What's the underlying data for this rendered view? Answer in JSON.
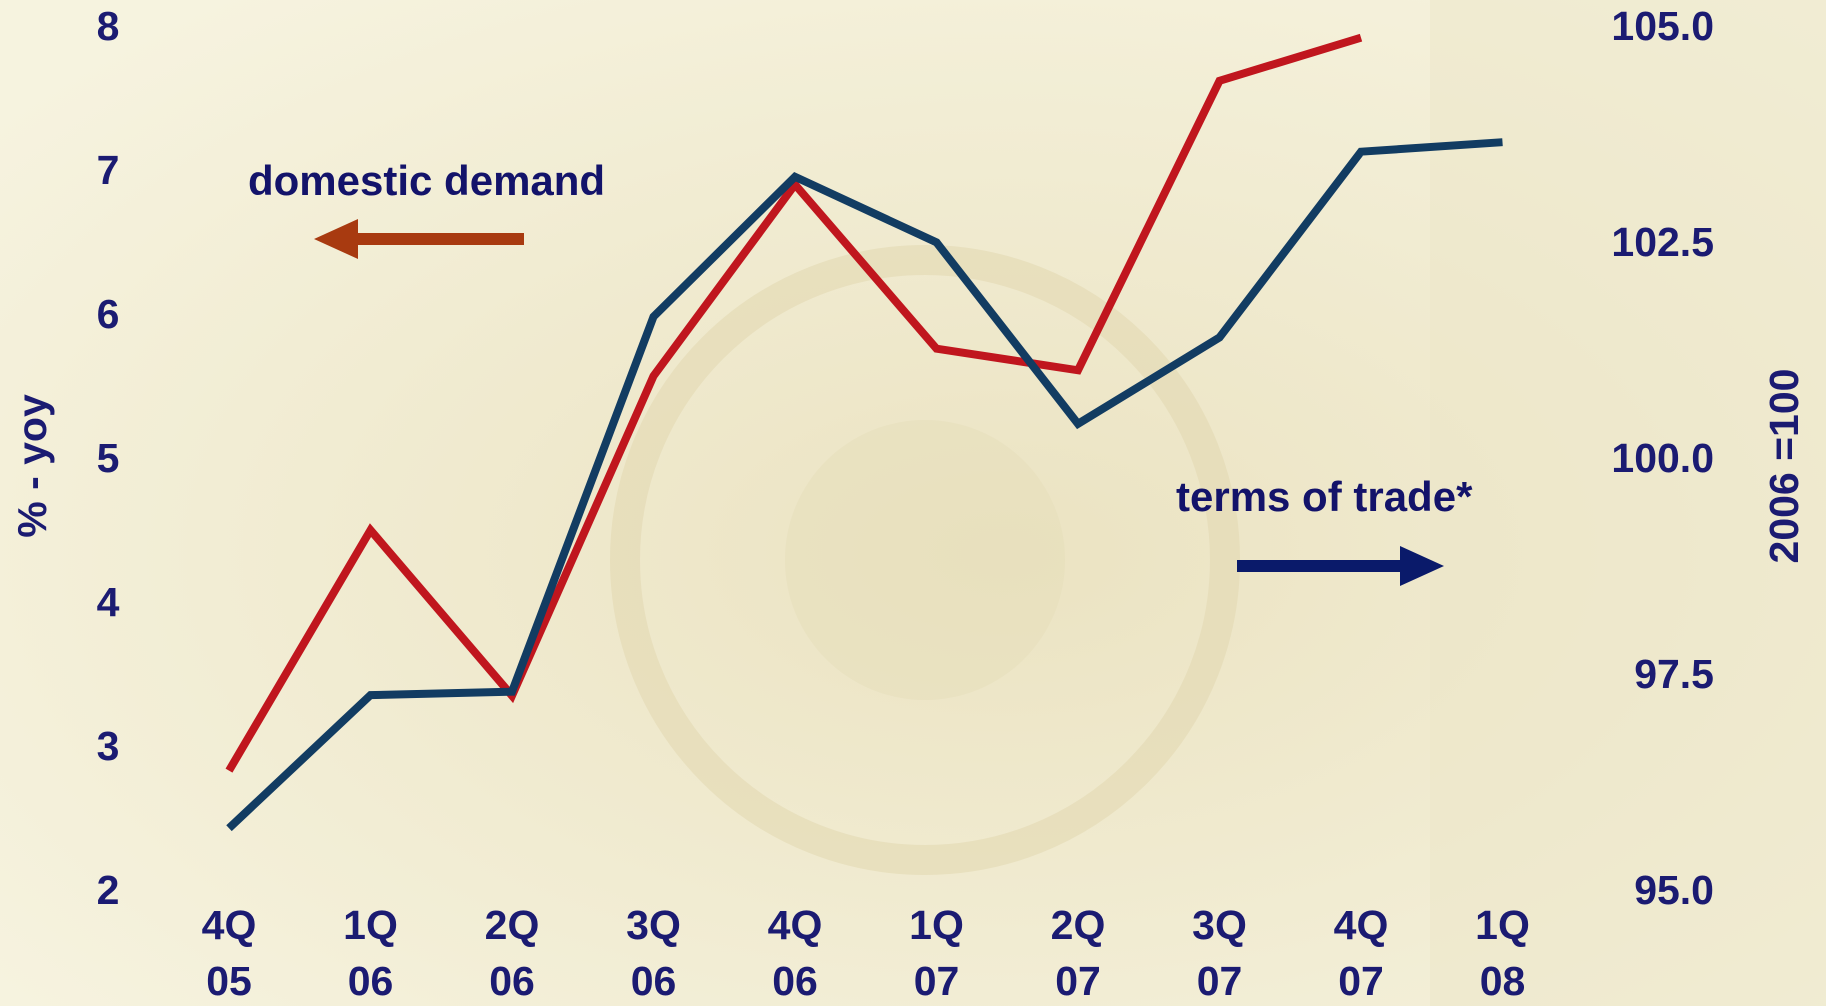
{
  "chart_data": {
    "type": "line",
    "categories": [
      [
        "4Q",
        "05"
      ],
      [
        "1Q",
        "06"
      ],
      [
        "2Q",
        "06"
      ],
      [
        "3Q",
        "06"
      ],
      [
        "4Q",
        "06"
      ],
      [
        "1Q",
        "07"
      ],
      [
        "2Q",
        "07"
      ],
      [
        "3Q",
        "07"
      ],
      [
        "4Q",
        "07"
      ],
      [
        "1Q",
        "08"
      ]
    ],
    "series": [
      {
        "name": "domestic demand",
        "color": "#c0161e",
        "values": [
          2.85,
          4.52,
          3.37,
          5.59,
          6.92,
          5.78,
          5.63,
          7.64,
          7.94,
          null
        ]
      },
      {
        "name": "terms of trade*",
        "color": "#123c62",
        "axis": "y2",
        "values": [
          95.75,
          97.29,
          97.33,
          101.67,
          103.29,
          102.53,
          100.43,
          101.43,
          103.58,
          103.69
        ]
      }
    ],
    "ylabel": "% - yoy",
    "y2label": "2006 =100",
    "ylim": [
      2,
      8
    ],
    "yticks": [
      2,
      3,
      4,
      5,
      6,
      7,
      8
    ],
    "y2lim": [
      95,
      105
    ],
    "y2ticks": [
      {
        "value": 95,
        "label": "95.0"
      },
      {
        "value": 97.5,
        "label": "97.5"
      },
      {
        "value": 100,
        "label": "100.0"
      },
      {
        "value": 102.5,
        "label": "102.5"
      },
      {
        "value": 105,
        "label": "105.0"
      }
    ],
    "grid": false
  }
}
